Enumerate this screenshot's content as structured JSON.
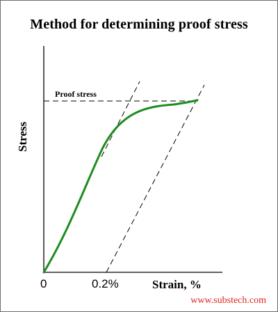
{
  "title": "Method for determining proof stress",
  "labels": {
    "proof_stress": "Proof stress",
    "y_axis": "Stress",
    "x_axis": "Strain, %",
    "origin_tick": "0",
    "offset_tick": "0.2%"
  },
  "watermark": "www.substech.com",
  "colors": {
    "curve": "#1e8c1e",
    "axes": "#000000",
    "watermark": "#e0221b",
    "frame": "#6b6b6b"
  }
}
